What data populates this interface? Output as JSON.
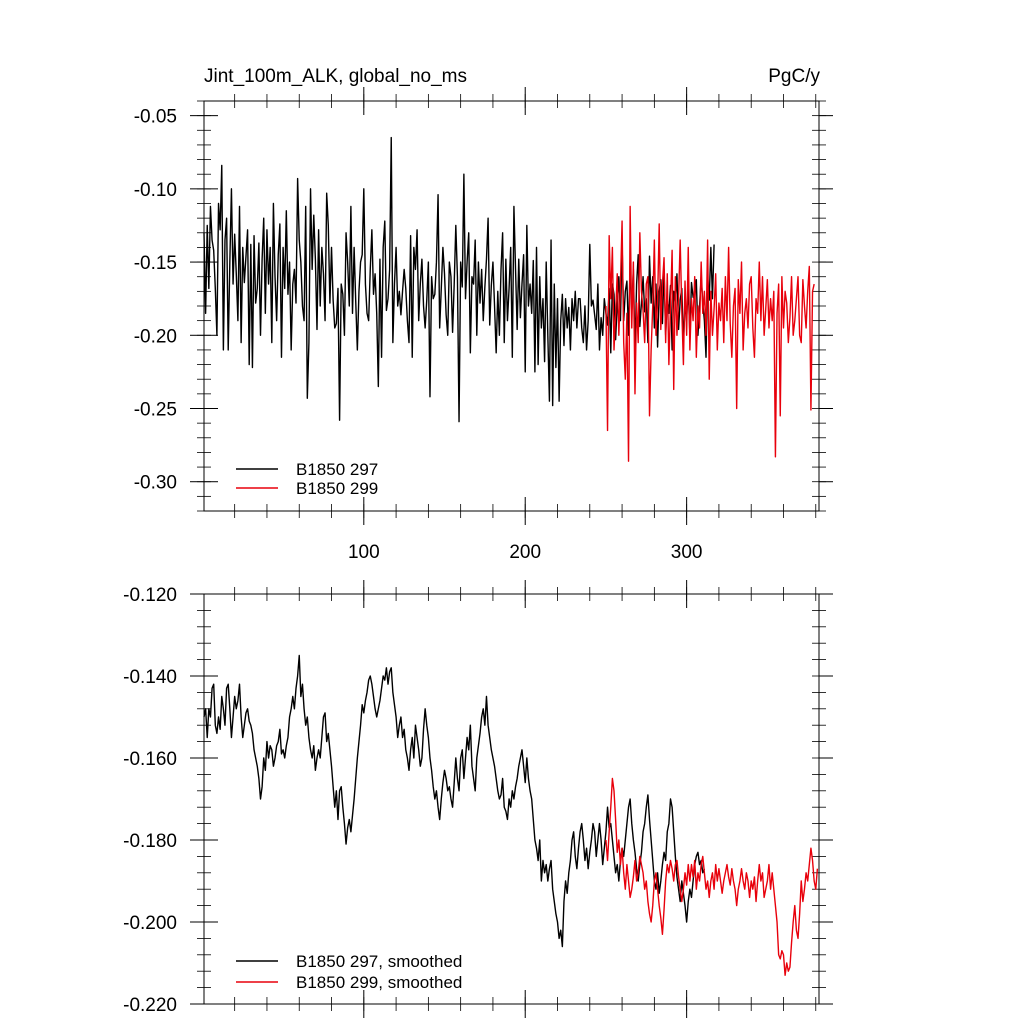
{
  "colors": {
    "series_a": "#000000",
    "series_b": "#e8000b"
  },
  "chart_data": [
    {
      "type": "line",
      "title": "Jint_100m_ALK, global_no_ms",
      "units": "PgC/y",
      "xlim": [
        1,
        382
      ],
      "ylim": [
        -0.32,
        -0.04
      ],
      "xticks": [
        100,
        200,
        300
      ],
      "xtick_labels": [
        "100",
        "200",
        "300"
      ],
      "yticks": [
        -0.05,
        -0.1,
        -0.15,
        -0.2,
        -0.25,
        -0.3
      ],
      "ytick_labels": [
        "-0.05",
        "-0.10",
        "-0.15",
        "-0.20",
        "-0.25",
        "-0.30"
      ],
      "grid": false,
      "legend": "bottom-left",
      "series": [
        {
          "name": "B1850 297",
          "color": "#000000",
          "x_start": 1,
          "values": [
            -0.13,
            -0.185,
            -0.125,
            -0.168,
            -0.112,
            -0.135,
            -0.142,
            -0.168,
            -0.2,
            -0.11,
            -0.128,
            -0.084,
            -0.21,
            -0.135,
            -0.12,
            -0.21,
            -0.15,
            -0.1,
            -0.165,
            -0.131,
            -0.158,
            -0.19,
            -0.112,
            -0.205,
            -0.14,
            -0.164,
            -0.146,
            -0.128,
            -0.22,
            -0.138,
            -0.222,
            -0.132,
            -0.178,
            -0.168,
            -0.137,
            -0.2,
            -0.148,
            -0.12,
            -0.185,
            -0.128,
            -0.165,
            -0.14,
            -0.205,
            -0.11,
            -0.16,
            -0.19,
            -0.145,
            -0.124,
            -0.215,
            -0.14,
            -0.168,
            -0.115,
            -0.172,
            -0.15,
            -0.21,
            -0.165,
            -0.155,
            -0.178,
            -0.093,
            -0.135,
            -0.15,
            -0.18,
            -0.19,
            -0.112,
            -0.243,
            -0.205,
            -0.1,
            -0.155,
            -0.118,
            -0.148,
            -0.196,
            -0.128,
            -0.18,
            -0.14,
            -0.158,
            -0.19,
            -0.103,
            -0.125,
            -0.178,
            -0.14,
            -0.176,
            -0.195,
            -0.192,
            -0.168,
            -0.258,
            -0.165,
            -0.172,
            -0.2,
            -0.13,
            -0.15,
            -0.18,
            -0.112,
            -0.185,
            -0.14,
            -0.177,
            -0.21,
            -0.17,
            -0.15,
            -0.145,
            -0.1,
            -0.165,
            -0.185,
            -0.19,
            -0.155,
            -0.128,
            -0.172,
            -0.158,
            -0.185,
            -0.235,
            -0.148,
            -0.215,
            -0.14,
            -0.122,
            -0.183,
            -0.175,
            -0.155,
            -0.065,
            -0.205,
            -0.165,
            -0.14,
            -0.18,
            -0.17,
            -0.186,
            -0.17,
            -0.155,
            -0.168,
            -0.19,
            -0.205,
            -0.132,
            -0.215,
            -0.14,
            -0.155,
            -0.128,
            -0.19,
            -0.165,
            -0.148,
            -0.18,
            -0.195,
            -0.176,
            -0.15,
            -0.242,
            -0.16,
            -0.175,
            -0.172,
            -0.15,
            -0.104,
            -0.195,
            -0.168,
            -0.14,
            -0.158,
            -0.186,
            -0.2,
            -0.15,
            -0.16,
            -0.198,
            -0.165,
            -0.125,
            -0.16,
            -0.259,
            -0.15,
            -0.167,
            -0.09,
            -0.175,
            -0.15,
            -0.13,
            -0.212,
            -0.16,
            -0.165,
            -0.135,
            -0.2,
            -0.15,
            -0.178,
            -0.155,
            -0.19,
            -0.167,
            -0.148,
            -0.12,
            -0.193,
            -0.166,
            -0.15,
            -0.18,
            -0.212,
            -0.17,
            -0.2,
            -0.155,
            -0.13,
            -0.205,
            -0.148,
            -0.19,
            -0.168,
            -0.14,
            -0.215,
            -0.112,
            -0.155,
            -0.196,
            -0.148,
            -0.188,
            -0.165,
            -0.145,
            -0.225,
            -0.125,
            -0.18,
            -0.165,
            -0.185,
            -0.149,
            -0.225,
            -0.14,
            -0.22,
            -0.16,
            -0.195,
            -0.175,
            -0.218,
            -0.15,
            -0.2,
            -0.245,
            -0.135,
            -0.248,
            -0.165,
            -0.222,
            -0.175,
            -0.245,
            -0.19,
            -0.172,
            -0.207,
            -0.175,
            -0.195,
            -0.181,
            -0.21,
            -0.175,
            -0.19,
            -0.17,
            -0.195,
            -0.175,
            -0.175,
            -0.195,
            -0.205,
            -0.18,
            -0.21,
            -0.19,
            -0.138,
            -0.18,
            -0.176,
            -0.186,
            -0.196,
            -0.165,
            -0.21,
            -0.188,
            -0.2,
            -0.175,
            -0.185,
            -0.193,
            -0.168,
            -0.212,
            -0.165,
            -0.172,
            -0.203,
            -0.178,
            -0.16,
            -0.19,
            -0.137,
            -0.19,
            -0.17,
            -0.163,
            -0.2,
            -0.15,
            -0.184,
            -0.155,
            -0.21,
            -0.165,
            -0.145,
            -0.194,
            -0.178,
            -0.16,
            -0.184,
            -0.175,
            -0.205,
            -0.146,
            -0.178,
            -0.16,
            -0.195,
            -0.165,
            -0.208,
            -0.17,
            -0.162,
            -0.192,
            -0.155,
            -0.2,
            -0.175,
            -0.185,
            -0.166,
            -0.21,
            -0.17,
            -0.178,
            -0.158,
            -0.196,
            -0.176,
            -0.168,
            -0.205,
            -0.18,
            -0.188,
            -0.168,
            -0.2,
            -0.164,
            -0.174,
            -0.175,
            -0.162,
            -0.2,
            -0.18,
            -0.16,
            -0.178,
            -0.19,
            -0.215,
            -0.16,
            -0.176,
            -0.14,
            -0.175,
            -0.138
          ]
        },
        {
          "name": "B1850 299",
          "color": "#e8000b",
          "x_start": 250,
          "values": [
            -0.18,
            -0.265,
            -0.132,
            -0.175,
            -0.14,
            -0.21,
            -0.185,
            -0.158,
            -0.2,
            -0.165,
            -0.122,
            -0.205,
            -0.23,
            -0.185,
            -0.286,
            -0.112,
            -0.195,
            -0.15,
            -0.24,
            -0.178,
            -0.205,
            -0.13,
            -0.17,
            -0.183,
            -0.205,
            -0.165,
            -0.16,
            -0.255,
            -0.21,
            -0.18,
            -0.135,
            -0.2,
            -0.177,
            -0.124,
            -0.196,
            -0.165,
            -0.147,
            -0.205,
            -0.158,
            -0.22,
            -0.18,
            -0.142,
            -0.237,
            -0.16,
            -0.2,
            -0.175,
            -0.135,
            -0.183,
            -0.22,
            -0.163,
            -0.2,
            -0.14,
            -0.21,
            -0.175,
            -0.19,
            -0.16,
            -0.215,
            -0.18,
            -0.195,
            -0.15,
            -0.185,
            -0.17,
            -0.2,
            -0.135,
            -0.23,
            -0.17,
            -0.2,
            -0.182,
            -0.158,
            -0.21,
            -0.178,
            -0.19,
            -0.168,
            -0.205,
            -0.16,
            -0.19,
            -0.14,
            -0.192,
            -0.215,
            -0.18,
            -0.168,
            -0.25,
            -0.162,
            -0.185,
            -0.15,
            -0.21,
            -0.185,
            -0.175,
            -0.195,
            -0.165,
            -0.16,
            -0.195,
            -0.215,
            -0.175,
            -0.185,
            -0.15,
            -0.19,
            -0.16,
            -0.2,
            -0.182,
            -0.162,
            -0.195,
            -0.175,
            -0.19,
            -0.17,
            -0.283,
            -0.185,
            -0.165,
            -0.255,
            -0.16,
            -0.195,
            -0.17,
            -0.178,
            -0.205,
            -0.188,
            -0.16,
            -0.2,
            -0.19,
            -0.175,
            -0.16,
            -0.2,
            -0.205,
            -0.162,
            -0.18,
            -0.195,
            -0.17,
            -0.153,
            -0.251,
            -0.17,
            -0.165
          ]
        }
      ]
    },
    {
      "type": "line",
      "title": "",
      "xlim": [
        1,
        382
      ],
      "ylim": [
        -0.22,
        -0.12
      ],
      "xticks": [
        100,
        200,
        300
      ],
      "xtick_labels": [],
      "yticks": [
        -0.12,
        -0.14,
        -0.16,
        -0.18,
        -0.2,
        -0.22
      ],
      "ytick_labels": [
        "-0.120",
        "-0.140",
        "-0.160",
        "-0.180",
        "-0.200",
        "-0.220"
      ],
      "grid": false,
      "legend": "bottom-left",
      "series": [
        {
          "name": "B1850 297, smoothed",
          "color": "#000000",
          "x_start": 1,
          "values": [
            -0.15,
            -0.148,
            -0.155,
            -0.148,
            -0.15,
            -0.143,
            -0.142,
            -0.152,
            -0.154,
            -0.15,
            -0.153,
            -0.145,
            -0.148,
            -0.152,
            -0.143,
            -0.142,
            -0.148,
            -0.155,
            -0.15,
            -0.145,
            -0.148,
            -0.146,
            -0.142,
            -0.15,
            -0.155,
            -0.152,
            -0.149,
            -0.148,
            -0.151,
            -0.152,
            -0.154,
            -0.158,
            -0.16,
            -0.162,
            -0.165,
            -0.17,
            -0.167,
            -0.16,
            -0.163,
            -0.156,
            -0.16,
            -0.157,
            -0.158,
            -0.162,
            -0.16,
            -0.157,
            -0.156,
            -0.153,
            -0.159,
            -0.158,
            -0.16,
            -0.157,
            -0.155,
            -0.15,
            -0.148,
            -0.145,
            -0.148,
            -0.143,
            -0.14,
            -0.135,
            -0.145,
            -0.142,
            -0.148,
            -0.152,
            -0.15,
            -0.155,
            -0.158,
            -0.16,
            -0.157,
            -0.163,
            -0.16,
            -0.158,
            -0.16,
            -0.155,
            -0.15,
            -0.149,
            -0.156,
            -0.154,
            -0.158,
            -0.162,
            -0.167,
            -0.172,
            -0.168,
            -0.175,
            -0.168,
            -0.167,
            -0.172,
            -0.176,
            -0.181,
            -0.177,
            -0.175,
            -0.178,
            -0.174,
            -0.17,
            -0.165,
            -0.16,
            -0.156,
            -0.152,
            -0.147,
            -0.149,
            -0.146,
            -0.144,
            -0.141,
            -0.14,
            -0.142,
            -0.145,
            -0.148,
            -0.15,
            -0.148,
            -0.146,
            -0.143,
            -0.14,
            -0.141,
            -0.138,
            -0.142,
            -0.139,
            -0.138,
            -0.144,
            -0.147,
            -0.15,
            -0.155,
            -0.152,
            -0.15,
            -0.155,
            -0.153,
            -0.158,
            -0.16,
            -0.163,
            -0.158,
            -0.155,
            -0.16,
            -0.152,
            -0.155,
            -0.158,
            -0.162,
            -0.16,
            -0.153,
            -0.148,
            -0.152,
            -0.155,
            -0.16,
            -0.163,
            -0.167,
            -0.17,
            -0.168,
            -0.172,
            -0.175,
            -0.17,
            -0.166,
            -0.163,
            -0.165,
            -0.168,
            -0.167,
            -0.17,
            -0.172,
            -0.166,
            -0.16,
            -0.165,
            -0.168,
            -0.16,
            -0.158,
            -0.165,
            -0.16,
            -0.155,
            -0.158,
            -0.152,
            -0.162,
            -0.165,
            -0.168,
            -0.16,
            -0.157,
            -0.154,
            -0.15,
            -0.148,
            -0.152,
            -0.145,
            -0.152,
            -0.155,
            -0.158,
            -0.16,
            -0.162,
            -0.165,
            -0.168,
            -0.17,
            -0.169,
            -0.165,
            -0.172,
            -0.173,
            -0.175,
            -0.17,
            -0.172,
            -0.168,
            -0.17,
            -0.167,
            -0.165,
            -0.162,
            -0.16,
            -0.158,
            -0.162,
            -0.166,
            -0.16,
            -0.165,
            -0.168,
            -0.17,
            -0.175,
            -0.18,
            -0.182,
            -0.185,
            -0.18,
            -0.19,
            -0.185,
            -0.188,
            -0.186,
            -0.19,
            -0.187,
            -0.185,
            -0.192,
            -0.195,
            -0.198,
            -0.2,
            -0.204,
            -0.202,
            -0.206,
            -0.195,
            -0.19,
            -0.193,
            -0.188,
            -0.185,
            -0.18,
            -0.178,
            -0.184,
            -0.187,
            -0.182,
            -0.178,
            -0.176,
            -0.18,
            -0.185,
            -0.182,
            -0.187,
            -0.183,
            -0.18,
            -0.176,
            -0.178,
            -0.184,
            -0.18,
            -0.176,
            -0.18,
            -0.186,
            -0.182,
            -0.178,
            -0.172,
            -0.177,
            -0.176,
            -0.18,
            -0.184,
            -0.188,
            -0.186,
            -0.19,
            -0.185,
            -0.182,
            -0.184,
            -0.18,
            -0.176,
            -0.172,
            -0.17,
            -0.176,
            -0.18,
            -0.183,
            -0.187,
            -0.19,
            -0.186,
            -0.183,
            -0.178,
            -0.176,
            -0.172,
            -0.169,
            -0.175,
            -0.18,
            -0.185,
            -0.19,
            -0.192,
            -0.188,
            -0.193,
            -0.19,
            -0.186,
            -0.183,
            -0.185,
            -0.178,
            -0.176,
            -0.17,
            -0.172,
            -0.178,
            -0.184,
            -0.189,
            -0.192,
            -0.195,
            -0.19,
            -0.193,
            -0.196,
            -0.2,
            -0.195,
            -0.192,
            -0.194,
            -0.19,
            -0.186,
            -0.184,
            -0.183,
            -0.186,
            -0.185,
            -0.188,
            -0.187
          ]
        },
        {
          "name": "B1850 299, smoothed",
          "color": "#e8000b",
          "x_start": 250,
          "values": [
            -0.18,
            -0.185,
            -0.178,
            -0.172,
            -0.165,
            -0.168,
            -0.175,
            -0.183,
            -0.18,
            -0.186,
            -0.182,
            -0.188,
            -0.192,
            -0.186,
            -0.19,
            -0.194,
            -0.192,
            -0.189,
            -0.185,
            -0.19,
            -0.188,
            -0.184,
            -0.186,
            -0.188,
            -0.192,
            -0.19,
            -0.195,
            -0.198,
            -0.2,
            -0.196,
            -0.19,
            -0.188,
            -0.192,
            -0.196,
            -0.199,
            -0.203,
            -0.197,
            -0.19,
            -0.186,
            -0.188,
            -0.185,
            -0.187,
            -0.19,
            -0.186,
            -0.185,
            -0.189,
            -0.192,
            -0.195,
            -0.192,
            -0.188,
            -0.191,
            -0.186,
            -0.19,
            -0.186,
            -0.189,
            -0.185,
            -0.192,
            -0.188,
            -0.19,
            -0.186,
            -0.184,
            -0.188,
            -0.192,
            -0.19,
            -0.194,
            -0.19,
            -0.188,
            -0.192,
            -0.186,
            -0.19,
            -0.187,
            -0.19,
            -0.193,
            -0.19,
            -0.188,
            -0.186,
            -0.189,
            -0.191,
            -0.187,
            -0.19,
            -0.192,
            -0.196,
            -0.192,
            -0.19,
            -0.187,
            -0.19,
            -0.192,
            -0.188,
            -0.19,
            -0.194,
            -0.19,
            -0.192,
            -0.189,
            -0.195,
            -0.19,
            -0.186,
            -0.19,
            -0.188,
            -0.194,
            -0.192,
            -0.19,
            -0.186,
            -0.192,
            -0.188,
            -0.192,
            -0.196,
            -0.2,
            -0.208,
            -0.209,
            -0.207,
            -0.208,
            -0.213,
            -0.21,
            -0.212,
            -0.211,
            -0.205,
            -0.2,
            -0.196,
            -0.202,
            -0.204,
            -0.198,
            -0.19,
            -0.195,
            -0.192,
            -0.188,
            -0.19,
            -0.186,
            -0.182,
            -0.185,
            -0.19,
            -0.192,
            -0.187
          ]
        }
      ]
    }
  ]
}
